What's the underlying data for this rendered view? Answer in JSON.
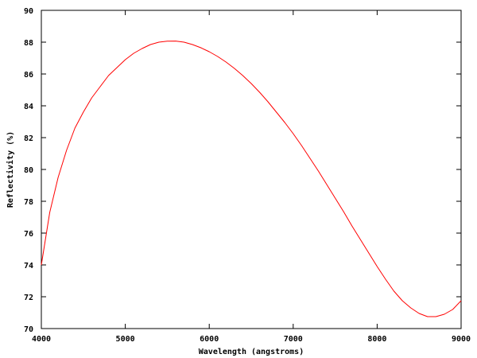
{
  "chart_data": {
    "type": "line",
    "title": "",
    "xlabel": "Wavelength (angstroms)",
    "ylabel": "Reflectivity (%)",
    "xlim": [
      4000,
      9000
    ],
    "ylim": [
      70,
      90
    ],
    "xticks": [
      4000,
      5000,
      6000,
      7000,
      8000,
      9000
    ],
    "yticks": [
      70,
      72,
      74,
      76,
      78,
      80,
      82,
      84,
      86,
      88,
      90
    ],
    "grid": false,
    "legend": "none",
    "series": [
      {
        "color": "#ff0000",
        "x": [
          4000,
          4100,
          4200,
          4300,
          4400,
          4500,
          4600,
          4700,
          4800,
          4900,
          5000,
          5100,
          5200,
          5300,
          5400,
          5500,
          5600,
          5700,
          5800,
          5900,
          6000,
          6100,
          6200,
          6300,
          6400,
          6500,
          6600,
          6700,
          6800,
          6900,
          7000,
          7100,
          7200,
          7300,
          7400,
          7500,
          7600,
          7700,
          7800,
          7900,
          8000,
          8100,
          8200,
          8300,
          8400,
          8500,
          8600,
          8700,
          8800,
          8900,
          9000
        ],
        "y": [
          74.0,
          77.3,
          79.5,
          81.2,
          82.6,
          83.6,
          84.5,
          85.2,
          85.9,
          86.4,
          86.9,
          87.3,
          87.6,
          87.85,
          88.0,
          88.06,
          88.07,
          88.0,
          87.85,
          87.65,
          87.4,
          87.1,
          86.75,
          86.35,
          85.9,
          85.4,
          84.85,
          84.25,
          83.6,
          82.95,
          82.25,
          81.5,
          80.7,
          79.9,
          79.05,
          78.2,
          77.35,
          76.45,
          75.6,
          74.75,
          73.9,
          73.1,
          72.35,
          71.75,
          71.3,
          70.95,
          70.75,
          70.75,
          70.9,
          71.2,
          71.75
        ]
      }
    ]
  }
}
